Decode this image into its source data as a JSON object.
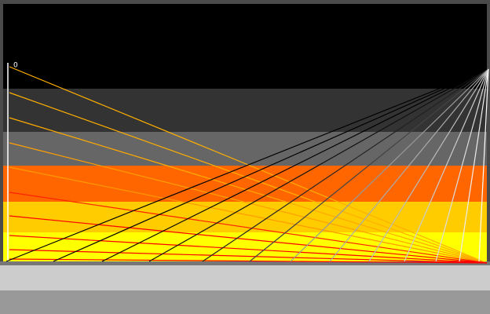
{
  "corner_label": "0"
}
